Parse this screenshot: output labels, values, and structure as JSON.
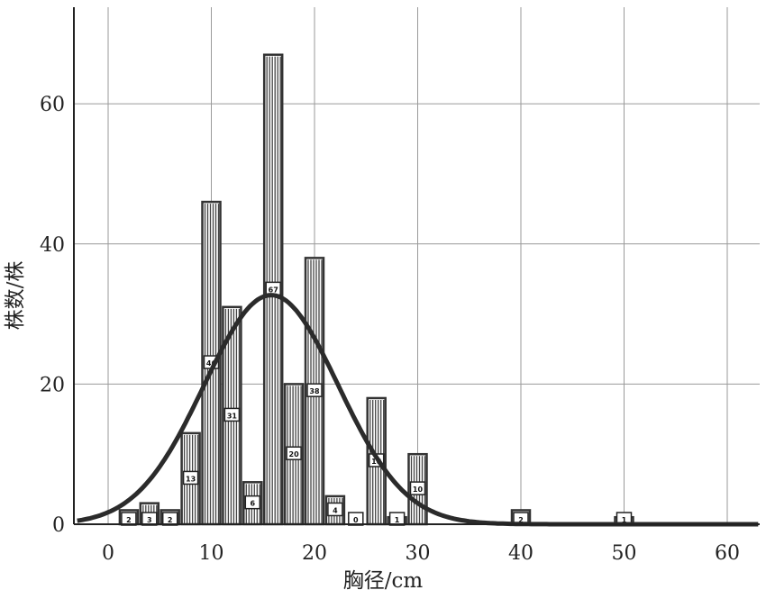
{
  "chart_data": {
    "type": "bar",
    "xlabel": "胸径/cm",
    "ylabel": "株数/株",
    "xlim": [
      -3,
      63
    ],
    "ylim": [
      0,
      73
    ],
    "xticks": [
      0,
      10,
      20,
      30,
      40,
      50,
      60
    ],
    "yticks": [
      0,
      20,
      40,
      60
    ],
    "grid": true,
    "bars": [
      {
        "x": 2,
        "value": 2,
        "label": "2"
      },
      {
        "x": 4,
        "value": 3,
        "label": "3"
      },
      {
        "x": 6,
        "value": 2,
        "label": "2"
      },
      {
        "x": 8,
        "value": 13,
        "label": "13"
      },
      {
        "x": 10,
        "value": 46,
        "label": "46"
      },
      {
        "x": 12,
        "value": 31,
        "label": "31"
      },
      {
        "x": 14,
        "value": 6,
        "label": "6"
      },
      {
        "x": 16,
        "value": 67,
        "label": "67"
      },
      {
        "x": 18,
        "value": 20,
        "label": "20"
      },
      {
        "x": 20,
        "value": 38,
        "label": "38"
      },
      {
        "x": 22,
        "value": 4,
        "label": "4"
      },
      {
        "x": 24,
        "value": 0,
        "label": "0"
      },
      {
        "x": 26,
        "value": 18,
        "label": "18"
      },
      {
        "x": 28,
        "value": 1,
        "label": "1"
      },
      {
        "x": 30,
        "value": 10,
        "label": "10"
      },
      {
        "x": 40,
        "value": 2,
        "label": "2"
      },
      {
        "x": 50,
        "value": 1,
        "label": "1"
      }
    ],
    "fit_curve": {
      "type": "normal",
      "mean": 15.8,
      "sd": 6.5,
      "peak": 32.7
    }
  }
}
